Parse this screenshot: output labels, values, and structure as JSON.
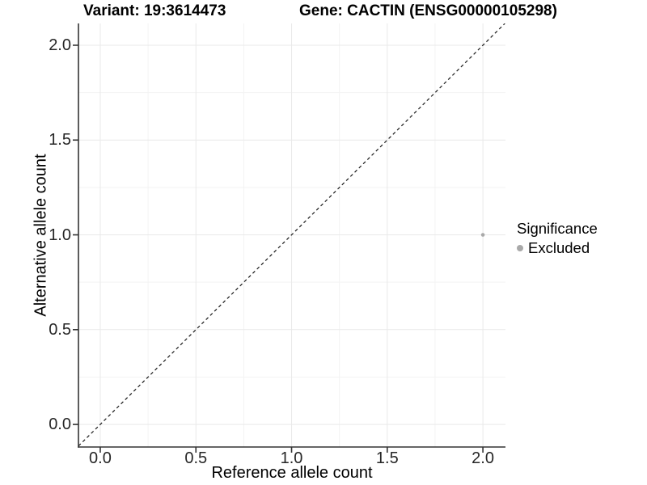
{
  "titles": {
    "variant": "Variant: 19:3614473",
    "gene": "Gene: CACTIN (ENSG00000105298)"
  },
  "axes": {
    "x_label": "Reference allele count",
    "y_label": "Alternative allele count"
  },
  "legend": {
    "title": "Significance",
    "items": [
      {
        "label": "Excluded",
        "color": "#A9A9A9"
      }
    ]
  },
  "chart_data": {
    "type": "scatter",
    "title_left": "Variant: 19:3614473",
    "title_right": "Gene: CACTIN (ENSG00000105298)",
    "xlabel": "Reference allele count",
    "ylabel": "Alternative allele count",
    "xlim": [
      -0.114,
      2.118
    ],
    "ylim": [
      -0.119,
      2.115
    ],
    "x_ticks": [
      0.0,
      0.5,
      1.0,
      1.5,
      2.0
    ],
    "x_tick_labels": [
      "0.0",
      "0.5",
      "1.0",
      "1.5",
      "2.0"
    ],
    "y_ticks": [
      0.0,
      0.5,
      1.0,
      1.5,
      2.0
    ],
    "y_tick_labels": [
      "0.0",
      "0.5",
      "1.0",
      "1.5",
      "2.0"
    ],
    "series": [
      {
        "name": "Excluded",
        "color": "#A9A9A9",
        "points": [
          {
            "x": 2.0,
            "y": 1.0
          }
        ]
      }
    ],
    "reference_line": {
      "kind": "identity",
      "style": "dashed",
      "color": "#1A1A1A"
    },
    "grid": {
      "major_color": "#E9E9E9",
      "minor_color": "#F3F3F3",
      "minor": true
    },
    "axis_line_color": "#333333",
    "legend_position": "right",
    "legend_title": "Significance"
  }
}
